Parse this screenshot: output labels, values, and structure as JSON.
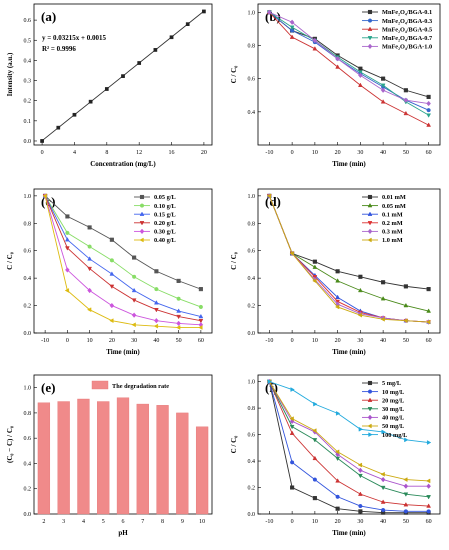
{
  "chart_data": [
    {
      "panel": "(a)",
      "type": "scatter",
      "xlabel": "Concentration (mg/L)",
      "ylabel": "Intensity (a.u.)",
      "xlim": [
        -1,
        21
      ],
      "ylim": [
        -0.02,
        0.68
      ],
      "xticks": [
        0,
        4,
        8,
        12,
        16,
        20
      ],
      "yticks": [
        0.0,
        0.1,
        0.2,
        0.3,
        0.4,
        0.5,
        0.6
      ],
      "annotations": [
        "y = 0.03215x + 0.0015",
        "R² = 0.9996"
      ],
      "fit": {
        "slope": 0.03215,
        "intercept": 0.0015
      },
      "grid": false,
      "series": [
        {
          "color": "#222222",
          "x": [
            0,
            2,
            4,
            6,
            8,
            10,
            12,
            14,
            16,
            18,
            20
          ],
          "y": [
            0.0,
            0.066,
            0.13,
            0.195,
            0.258,
            0.322,
            0.387,
            0.452,
            0.515,
            0.58,
            0.643
          ]
        }
      ]
    },
    {
      "panel": "(b)",
      "type": "line",
      "xlabel": "Time (min)",
      "ylabel": "C / C₀",
      "xlim": [
        -15,
        65
      ],
      "ylim": [
        0.2,
        1.05
      ],
      "xticks": [
        -10,
        0,
        10,
        20,
        30,
        40,
        50,
        60
      ],
      "yticks": [
        0.4,
        0.6,
        0.8,
        1.0
      ],
      "legend_position": "top-right",
      "x": [
        -10,
        0,
        10,
        20,
        30,
        40,
        50,
        60
      ],
      "series": [
        {
          "name": "MnFe₂O₄/BGA-0.1",
          "color": "#333333",
          "marker": "square",
          "values": [
            1.0,
            0.89,
            0.84,
            0.74,
            0.66,
            0.6,
            0.53,
            0.49
          ]
        },
        {
          "name": "MnFe₂O₄/BGA-0.3",
          "color": "#3366cc",
          "marker": "circle",
          "values": [
            1.0,
            0.89,
            0.82,
            0.72,
            0.63,
            0.55,
            0.47,
            0.41
          ]
        },
        {
          "name": "MnFe₂O₄/BGA-0.5",
          "color": "#cc3333",
          "marker": "triangle",
          "values": [
            1.0,
            0.85,
            0.78,
            0.67,
            0.56,
            0.46,
            0.39,
            0.32
          ]
        },
        {
          "name": "MnFe₂O₄/BGA-0.7",
          "color": "#2aa58c",
          "marker": "triangle-down",
          "values": [
            1.0,
            0.91,
            0.83,
            0.73,
            0.64,
            0.56,
            0.46,
            0.38
          ]
        },
        {
          "name": "MnFe₂O₄/BGA-1.0",
          "color": "#aa66cc",
          "marker": "diamond",
          "values": [
            1.0,
            0.94,
            0.83,
            0.72,
            0.62,
            0.53,
            0.47,
            0.45
          ]
        }
      ]
    },
    {
      "panel": "(c)",
      "type": "line",
      "xlabel": "Time (min)",
      "ylabel": "C / C₀",
      "xlim": [
        -15,
        65
      ],
      "ylim": [
        0.0,
        1.05
      ],
      "xticks": [
        -10,
        0,
        10,
        20,
        30,
        40,
        50,
        60
      ],
      "yticks": [
        0.0,
        0.2,
        0.4,
        0.6,
        0.8,
        1.0
      ],
      "legend_position": "top-right",
      "x": [
        -10,
        0,
        10,
        20,
        30,
        40,
        50,
        60
      ],
      "series": [
        {
          "name": "0.05 g/L",
          "color": "#555555",
          "marker": "square",
          "values": [
            1.0,
            0.85,
            0.77,
            0.68,
            0.55,
            0.45,
            0.38,
            0.32
          ]
        },
        {
          "name": "0.10 g/L",
          "color": "#88dd66",
          "marker": "circle",
          "values": [
            1.0,
            0.73,
            0.63,
            0.53,
            0.41,
            0.32,
            0.25,
            0.19
          ]
        },
        {
          "name": "0.15 g/L",
          "color": "#4466ee",
          "marker": "triangle",
          "values": [
            1.0,
            0.68,
            0.54,
            0.43,
            0.31,
            0.22,
            0.16,
            0.12
          ]
        },
        {
          "name": "0.20 g/L",
          "color": "#cc3333",
          "marker": "triangle-down",
          "values": [
            1.0,
            0.62,
            0.47,
            0.34,
            0.24,
            0.17,
            0.12,
            0.09
          ]
        },
        {
          "name": "0.30 g/L",
          "color": "#cc55dd",
          "marker": "diamond",
          "values": [
            1.0,
            0.46,
            0.31,
            0.2,
            0.13,
            0.09,
            0.07,
            0.06
          ]
        },
        {
          "name": "0.40 g/L",
          "color": "#ddbb11",
          "marker": "triangle-left",
          "values": [
            1.0,
            0.31,
            0.17,
            0.09,
            0.06,
            0.05,
            0.04,
            0.04
          ]
        }
      ]
    },
    {
      "panel": "(d)",
      "type": "line",
      "xlabel": "Time (min)",
      "ylabel": "C / C₀",
      "xlim": [
        -15,
        65
      ],
      "ylim": [
        0.0,
        1.05
      ],
      "xticks": [
        -10,
        0,
        10,
        20,
        30,
        40,
        50,
        60
      ],
      "yticks": [
        0.0,
        0.2,
        0.4,
        0.6,
        0.8,
        1.0
      ],
      "legend_position": "top-right",
      "x": [
        -10,
        0,
        10,
        20,
        30,
        40,
        50,
        60
      ],
      "series": [
        {
          "name": "0.01 mM",
          "color": "#333333",
          "marker": "square",
          "values": [
            1.0,
            0.58,
            0.52,
            0.45,
            0.41,
            0.37,
            0.34,
            0.32
          ]
        },
        {
          "name": "0.05 mM",
          "color": "#4a8a1a",
          "marker": "triangle",
          "values": [
            1.0,
            0.58,
            0.48,
            0.38,
            0.31,
            0.25,
            0.2,
            0.16
          ]
        },
        {
          "name": "0.1 mM",
          "color": "#3355dd",
          "marker": "triangle",
          "values": [
            1.0,
            0.58,
            0.42,
            0.26,
            0.16,
            0.11,
            0.09,
            0.08
          ]
        },
        {
          "name": "0.2 mM",
          "color": "#dd3333",
          "marker": "triangle-down",
          "values": [
            1.0,
            0.58,
            0.41,
            0.23,
            0.15,
            0.11,
            0.09,
            0.08
          ]
        },
        {
          "name": "0.3 mM",
          "color": "#aa66cc",
          "marker": "diamond",
          "values": [
            1.0,
            0.58,
            0.39,
            0.21,
            0.14,
            0.11,
            0.09,
            0.08
          ]
        },
        {
          "name": "1.0 mM",
          "color": "#ccaa11",
          "marker": "triangle-left",
          "values": [
            1.0,
            0.58,
            0.38,
            0.19,
            0.13,
            0.1,
            0.09,
            0.08
          ]
        }
      ]
    },
    {
      "panel": "(e)",
      "type": "bar",
      "xlabel": "pH",
      "ylabel": "(C₀ − C) / C₀",
      "ylim": [
        0.0,
        1.1
      ],
      "yticks": [
        0.0,
        0.2,
        0.4,
        0.6,
        0.8,
        1.0
      ],
      "categories": [
        "2",
        "3",
        "4",
        "5",
        "6",
        "7",
        "8",
        "9",
        "10"
      ],
      "legend_position": "top",
      "series": [
        {
          "name": "The degradation rate",
          "color": "#f08a8a",
          "values": [
            0.88,
            0.89,
            0.91,
            0.89,
            0.92,
            0.87,
            0.86,
            0.8,
            0.69
          ]
        }
      ]
    },
    {
      "panel": "(f)",
      "type": "line",
      "xlabel": "Time (min)",
      "ylabel": "C / C₀",
      "xlim": [
        -15,
        65
      ],
      "ylim": [
        0.0,
        1.05
      ],
      "xticks": [
        -10,
        0,
        10,
        20,
        30,
        40,
        50,
        60
      ],
      "yticks": [
        0.0,
        0.2,
        0.4,
        0.6,
        0.8,
        1.0
      ],
      "legend_position": "top-right",
      "x": [
        -10,
        0,
        10,
        20,
        30,
        40,
        50,
        60
      ],
      "series": [
        {
          "name": "5 mg/L",
          "color": "#333333",
          "marker": "square",
          "values": [
            1.0,
            0.2,
            0.12,
            0.04,
            0.02,
            0.01,
            0.01,
            0.01
          ]
        },
        {
          "name": "10 mg/L",
          "color": "#3355dd",
          "marker": "circle",
          "values": [
            1.0,
            0.39,
            0.26,
            0.13,
            0.06,
            0.03,
            0.02,
            0.02
          ]
        },
        {
          "name": "20 mg/L",
          "color": "#cc3333",
          "marker": "triangle",
          "values": [
            1.0,
            0.61,
            0.42,
            0.25,
            0.15,
            0.09,
            0.07,
            0.06
          ]
        },
        {
          "name": "30 mg/L",
          "color": "#2a8a5a",
          "marker": "triangle-down",
          "values": [
            1.0,
            0.66,
            0.56,
            0.42,
            0.29,
            0.2,
            0.15,
            0.13
          ]
        },
        {
          "name": "40 mg/L",
          "color": "#aa55cc",
          "marker": "diamond",
          "values": [
            1.0,
            0.7,
            0.62,
            0.45,
            0.33,
            0.26,
            0.21,
            0.21
          ]
        },
        {
          "name": "50 mg/L",
          "color": "#ccaa11",
          "marker": "triangle-left",
          "values": [
            1.0,
            0.72,
            0.63,
            0.47,
            0.37,
            0.3,
            0.26,
            0.25
          ]
        },
        {
          "name": "100 mg/L",
          "color": "#22aadd",
          "marker": "triangle-right",
          "values": [
            1.0,
            0.94,
            0.83,
            0.76,
            0.64,
            0.62,
            0.56,
            0.54
          ]
        }
      ]
    }
  ]
}
